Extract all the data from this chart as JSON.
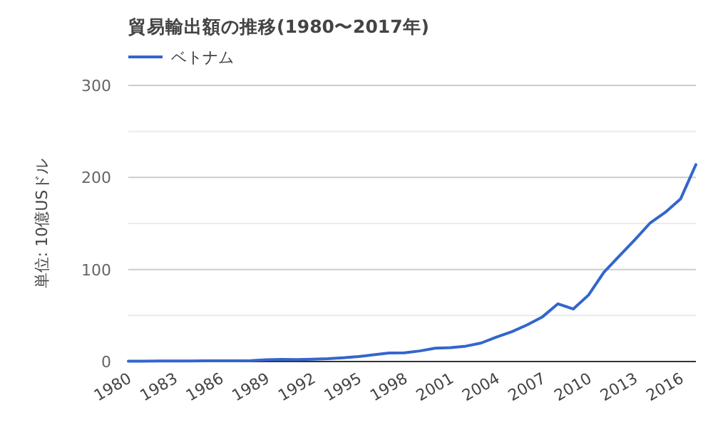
{
  "chart_data": {
    "type": "line",
    "title": "貿易輸出額の推移(1980〜2017年)",
    "ylabel": "単位: 10億USドル",
    "legend": "top left",
    "grid": "y",
    "x": [
      1980,
      1981,
      1982,
      1983,
      1984,
      1985,
      1986,
      1987,
      1988,
      1989,
      1990,
      1991,
      1992,
      1993,
      1994,
      1995,
      1996,
      1997,
      1998,
      1999,
      2000,
      2001,
      2002,
      2003,
      2004,
      2005,
      2006,
      2007,
      2008,
      2009,
      2010,
      2011,
      2012,
      2013,
      2014,
      2015,
      2016,
      2017
    ],
    "series": [
      {
        "name": "ベトナム",
        "color": "#3366cc",
        "values": [
          0.3,
          0.4,
          0.5,
          0.6,
          0.65,
          0.7,
          0.8,
          0.85,
          1.0,
          1.9,
          2.4,
          2.1,
          2.6,
          3.0,
          4.1,
          5.4,
          7.3,
          9.2,
          9.4,
          11.5,
          14.5,
          15.0,
          16.7,
          20.1,
          26.5,
          32.4,
          39.8,
          48.6,
          62.7,
          57.1,
          72.2,
          96.9,
          114.5,
          132.0,
          150.2,
          162.0,
          176.6,
          214.0
        ]
      }
    ],
    "xlim": [
      1980,
      2017
    ],
    "xticks": [
      1980,
      1983,
      1986,
      1989,
      1992,
      1995,
      1998,
      2001,
      2004,
      2007,
      2010,
      2013,
      2016
    ],
    "ylim": [
      0,
      300
    ],
    "yticks": [
      0,
      {
        "value": 50,
        "label": null
      },
      100,
      {
        "value": 150,
        "label": null
      },
      200,
      {
        "value": 250,
        "label": null
      },
      300
    ]
  }
}
